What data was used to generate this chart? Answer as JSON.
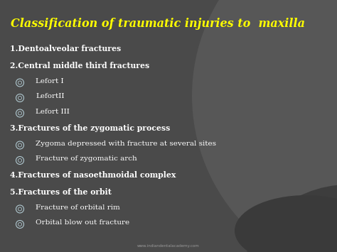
{
  "title": "Classification of traumatic injuries to  maxilla",
  "title_color": "#FFFF00",
  "title_fontsize": 11.5,
  "bg_color_main": "#4a4a4a",
  "text_color_white": "#FFFFFF",
  "bullet_color": "#b0c8d0",
  "watermark": "www.indiandentalacademy.com",
  "arc_color_light": "#5a5a5a",
  "arc_color_dark": "#3a3a3a",
  "items": [
    {
      "type": "main",
      "text": "1.Dentoalveolar fractures"
    },
    {
      "type": "main",
      "text": "2.Central middle third fractures"
    },
    {
      "type": "sub",
      "text": "Lefort I"
    },
    {
      "type": "sub",
      "text": "LefortII"
    },
    {
      "type": "sub",
      "text": "Lefort III"
    },
    {
      "type": "main",
      "text": "3.Fractures of the zygomatic process"
    },
    {
      "type": "sub",
      "text": "Zygoma depressed with fracture at several sites"
    },
    {
      "type": "sub",
      "text": "Fracture of zygomatic arch"
    },
    {
      "type": "main",
      "text": "4.Fractures of nasoethmoidal complex"
    },
    {
      "type": "main",
      "text": "5.Fractures of the orbit"
    },
    {
      "type": "sub",
      "text": "Fracture of orbital rim"
    },
    {
      "type": "sub",
      "text": "Orbital blow out fracture"
    }
  ]
}
